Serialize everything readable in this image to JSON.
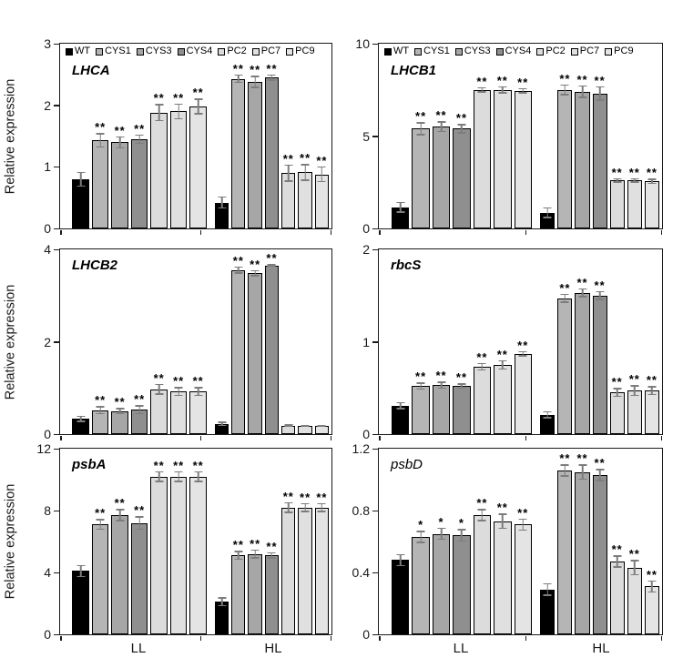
{
  "figure": {
    "description": "Six-panel relative gene expression bar figure under low light (LL) and high light (HL)"
  },
  "axis": {
    "y_label": "Relative expression",
    "x_groups": [
      "LL",
      "HL"
    ]
  },
  "legend": {
    "labels": [
      "WT",
      "CYS1",
      "CYS3",
      "CYS4",
      "PC2",
      "PC7",
      "PC9"
    ]
  },
  "colors": {
    "WT": "#000000",
    "CYS1": "#b5b5b5",
    "CYS3": "#a6a6a6",
    "CYS4": "#8f8f8f",
    "PC2": "#dcdcdc",
    "PC7": "#e0e0e0",
    "PC9": "#e4e4e4",
    "error_bar": "#7d7d7d",
    "axis_line": "#1a1a1a"
  },
  "chart_data": [
    {
      "type": "bar",
      "title": "LHCA",
      "title_style": "bold-italic",
      "legend_shown": true,
      "ylim": [
        0,
        3
      ],
      "yticks": [
        0,
        1,
        2,
        3
      ],
      "categories": [
        "WT",
        "CYS1",
        "CYS3",
        "CYS4",
        "PC2",
        "PC7",
        "PC9"
      ],
      "groups": [
        {
          "label": "LL",
          "values": [
            0.8,
            1.43,
            1.4,
            1.45,
            1.88,
            1.9,
            1.98
          ],
          "errors": [
            0.12,
            0.12,
            0.1,
            0.08,
            0.14,
            0.13,
            0.13
          ],
          "significance": [
            "",
            "**",
            "**",
            "**",
            "**",
            "**",
            "**"
          ]
        },
        {
          "label": "HL",
          "values": [
            0.42,
            2.43,
            2.38,
            2.45,
            0.9,
            0.91,
            0.88
          ],
          "errors": [
            0.1,
            0.07,
            0.1,
            0.05,
            0.14,
            0.14,
            0.13
          ],
          "significance": [
            "",
            "**",
            "**",
            "**",
            "**",
            "**",
            "**"
          ]
        }
      ]
    },
    {
      "type": "bar",
      "title": "LHCB1",
      "title_style": "bold-italic",
      "legend_shown": true,
      "ylim": [
        0,
        10
      ],
      "yticks": [
        0,
        5,
        10
      ],
      "categories": [
        "WT",
        "CYS1",
        "CYS3",
        "CYS4",
        "PC2",
        "PC7",
        "PC9"
      ],
      "groups": [
        {
          "label": "LL",
          "values": [
            1.15,
            5.4,
            5.5,
            5.4,
            7.5,
            7.5,
            7.45
          ],
          "errors": [
            0.3,
            0.35,
            0.3,
            0.25,
            0.15,
            0.2,
            0.15
          ],
          "significance": [
            "",
            "**",
            "**",
            "**",
            "**",
            "**",
            "**"
          ]
        },
        {
          "label": "HL",
          "values": [
            0.85,
            7.5,
            7.4,
            7.3,
            2.6,
            2.6,
            2.55
          ],
          "errors": [
            0.3,
            0.3,
            0.35,
            0.4,
            0.12,
            0.12,
            0.15
          ],
          "significance": [
            "",
            "**",
            "**",
            "**",
            "**",
            "**",
            "**"
          ]
        }
      ]
    },
    {
      "type": "bar",
      "title": "LHCB2",
      "title_style": "bold-italic",
      "legend_shown": false,
      "ylim": [
        0,
        4
      ],
      "yticks": [
        0,
        2,
        4
      ],
      "categories": [
        "WT",
        "CYS1",
        "CYS3",
        "CYS4",
        "PC2",
        "PC7",
        "PC9"
      ],
      "groups": [
        {
          "label": "LL",
          "values": [
            0.33,
            0.52,
            0.5,
            0.53,
            0.97,
            0.92,
            0.92
          ],
          "errors": [
            0.07,
            0.09,
            0.07,
            0.1,
            0.12,
            0.1,
            0.1
          ],
          "significance": [
            "",
            "**",
            "**",
            "**",
            "**",
            "**",
            "**"
          ]
        },
        {
          "label": "HL",
          "values": [
            0.22,
            3.55,
            3.48,
            3.65,
            0.18,
            0.17,
            0.17
          ],
          "errors": [
            0.05,
            0.08,
            0.07,
            0.03,
            0.03,
            0.02,
            0.02
          ],
          "significance": [
            "",
            "**",
            "**",
            "**",
            "",
            "",
            ""
          ]
        }
      ]
    },
    {
      "type": "bar",
      "title": "rbcS",
      "title_style": "bold-italic",
      "legend_shown": false,
      "ylim": [
        0,
        2
      ],
      "yticks": [
        0,
        1,
        2
      ],
      "categories": [
        "WT",
        "CYS1",
        "CYS3",
        "CYS4",
        "PC2",
        "PC7",
        "PC9"
      ],
      "groups": [
        {
          "label": "LL",
          "values": [
            0.31,
            0.52,
            0.53,
            0.52,
            0.73,
            0.75,
            0.87
          ],
          "errors": [
            0.04,
            0.04,
            0.04,
            0.03,
            0.04,
            0.05,
            0.03
          ],
          "significance": [
            "",
            "**",
            "**",
            "**",
            "**",
            "**",
            "**"
          ]
        },
        {
          "label": "HL",
          "values": [
            0.21,
            1.47,
            1.53,
            1.5,
            0.45,
            0.47,
            0.47
          ],
          "errors": [
            0.04,
            0.05,
            0.05,
            0.05,
            0.05,
            0.06,
            0.05
          ],
          "significance": [
            "",
            "**",
            "**",
            "**",
            "**",
            "**",
            "**"
          ]
        }
      ]
    },
    {
      "type": "bar",
      "title": "psbA",
      "title_style": "bold-italic",
      "legend_shown": false,
      "ylim": [
        0,
        12
      ],
      "yticks": [
        0,
        4,
        8,
        12
      ],
      "categories": [
        "WT",
        "CYS1",
        "CYS3",
        "CYS4",
        "PC2",
        "PC7",
        "PC9"
      ],
      "groups": [
        {
          "label": "LL",
          "values": [
            4.1,
            7.1,
            7.7,
            7.2,
            10.2,
            10.2,
            10.2
          ],
          "errors": [
            0.4,
            0.35,
            0.4,
            0.45,
            0.35,
            0.35,
            0.35
          ],
          "significance": [
            "",
            "**",
            "**",
            "**",
            "**",
            "**",
            "**"
          ]
        },
        {
          "label": "HL",
          "values": [
            2.1,
            5.1,
            5.2,
            5.1,
            8.2,
            8.2,
            8.2
          ],
          "errors": [
            0.3,
            0.3,
            0.3,
            0.2,
            0.35,
            0.3,
            0.3
          ],
          "significance": [
            "",
            "**",
            "**",
            "**",
            "**",
            "**",
            "**"
          ]
        }
      ]
    },
    {
      "type": "bar",
      "title": "psbD",
      "title_style": "italic",
      "legend_shown": false,
      "ylim": [
        0,
        1.2
      ],
      "yticks": [
        0,
        0.4,
        0.8,
        1.2
      ],
      "categories": [
        "WT",
        "CYS1",
        "CYS3",
        "CYS4",
        "PC2",
        "PC7",
        "PC9"
      ],
      "groups": [
        {
          "label": "LL",
          "values": [
            0.48,
            0.63,
            0.65,
            0.64,
            0.77,
            0.73,
            0.71
          ],
          "errors": [
            0.04,
            0.04,
            0.04,
            0.04,
            0.04,
            0.05,
            0.04
          ],
          "significance": [
            "",
            "*",
            "*",
            "*",
            "**",
            "**",
            "**"
          ]
        },
        {
          "label": "HL",
          "values": [
            0.29,
            1.06,
            1.05,
            1.03,
            0.47,
            0.43,
            0.31
          ],
          "errors": [
            0.04,
            0.04,
            0.05,
            0.04,
            0.04,
            0.05,
            0.04
          ],
          "significance": [
            "",
            "**",
            "**",
            "**",
            "**",
            "**",
            "**"
          ]
        }
      ]
    }
  ]
}
